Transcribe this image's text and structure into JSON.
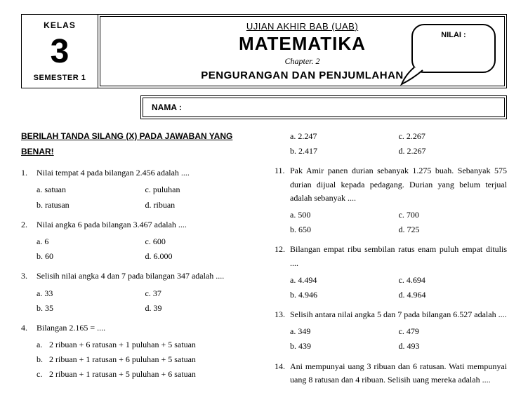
{
  "header": {
    "kelas_label": "KELAS",
    "kelas_num": "3",
    "semester": "SEMESTER 1",
    "uab": "UJIAN AKHIR BAB (UAB)",
    "subject": "MATEMATIKA",
    "chapter": "Chapter. 2",
    "topic": "PENGURANGAN DAN PENJUMLAHAN",
    "nilai_label": "NILAI :",
    "nama_label": "NAMA :"
  },
  "instruction": "BERILAH TANDA SILANG (X) PADA JAWABAN YANG BENAR!",
  "left": [
    {
      "num": "1.",
      "text": "Nilai tempat 4 pada bilangan 2.456 adalah ....",
      "opts": [
        {
          "l": "a.",
          "t": "satuan"
        },
        {
          "l": "c.",
          "t": "puluhan"
        },
        {
          "l": "b.",
          "t": "ratusan"
        },
        {
          "l": "d.",
          "t": "ribuan"
        }
      ]
    },
    {
      "num": "2.",
      "text": "Nilai angka 6 pada bilangan 3.467 adalah ....",
      "opts": [
        {
          "l": "a.",
          "t": "6"
        },
        {
          "l": "c.",
          "t": "600"
        },
        {
          "l": "b.",
          "t": "60"
        },
        {
          "l": "d.",
          "t": "6.000"
        }
      ]
    },
    {
      "num": "3.",
      "text": "Selisih nilai angka 4 dan 7 pada bilangan 347 adalah ....",
      "opts": [
        {
          "l": "a.",
          "t": "33"
        },
        {
          "l": "c.",
          "t": "37"
        },
        {
          "l": "b.",
          "t": "35"
        },
        {
          "l": "d.",
          "t": "39"
        }
      ]
    },
    {
      "num": "4.",
      "text": "Bilangan 2.165 = ....",
      "fullopts": [
        {
          "l": "a.",
          "t": "2 ribuan + 6 ratusan + 1 puluhan + 5 satuan"
        },
        {
          "l": "b.",
          "t": "2 ribuan + 1 ratusan + 6 puluhan + 5 satuan"
        },
        {
          "l": "c.",
          "t": "2 ribuan + 1 ratusan + 5 puluhan + 6 satuan"
        }
      ]
    }
  ],
  "right_pre_opts": [
    {
      "l": "a.",
      "t": "2.247"
    },
    {
      "l": "c.",
      "t": "2.267"
    },
    {
      "l": "b.",
      "t": "2.417"
    },
    {
      "l": "d.",
      "t": "2.267"
    }
  ],
  "right": [
    {
      "num": "11.",
      "text": "Pak Amir panen durian sebanyak 1.275 buah. Sebanyak 575 durian dijual kepada pedagang. Durian yang belum terjual adalah sebanyak ....",
      "opts": [
        {
          "l": "a.",
          "t": "500"
        },
        {
          "l": "c.",
          "t": "700"
        },
        {
          "l": "b.",
          "t": "650"
        },
        {
          "l": "d.",
          "t": "725"
        }
      ]
    },
    {
      "num": "12.",
      "text": "Bilangan empat ribu sembilan ratus enam puluh empat ditulis ....",
      "opts": [
        {
          "l": "a.",
          "t": "4.494"
        },
        {
          "l": "c.",
          "t": "4.694"
        },
        {
          "l": "b.",
          "t": "4.946"
        },
        {
          "l": "d.",
          "t": "4.964"
        }
      ]
    },
    {
      "num": "13.",
      "text": "Selisih antara nilai angka 5 dan 7 pada bilangan 6.527 adalah ....",
      "opts": [
        {
          "l": "a.",
          "t": "349"
        },
        {
          "l": "c.",
          "t": "479"
        },
        {
          "l": "b.",
          "t": "439"
        },
        {
          "l": "d.",
          "t": "493"
        }
      ]
    },
    {
      "num": "14.",
      "text": "Ani mempunyai uang 3 ribuan dan 6 ratusan. Wati mempunyai uang 8 ratusan dan 4 ribuan. Selisih uang mereka adalah ....",
      "opts": []
    }
  ]
}
